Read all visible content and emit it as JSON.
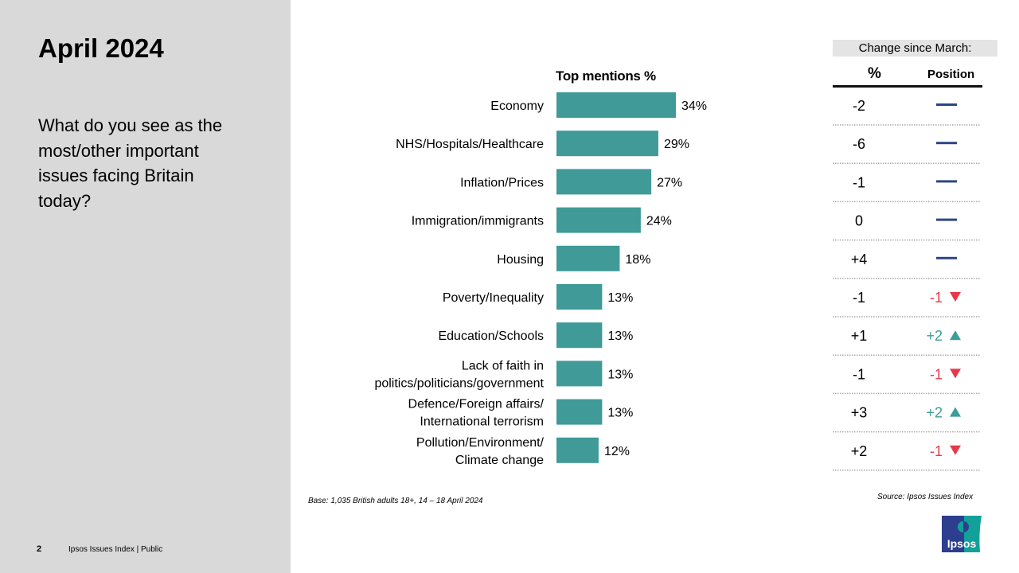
{
  "page": {
    "title": "April 2024",
    "question": "What do you see as the most/other important issues facing Britain today?",
    "page_number": "2",
    "footer": "Ipsos Issues Index | Public",
    "base": "Base: 1,035 British adults 18+, 14 – 18 April 2024",
    "source": "Source: Ipsos Issues Index",
    "logo": "Ipsos"
  },
  "change_table": {
    "header": "Change since March:",
    "pct_header": "%",
    "position_header": "Position",
    "rows": [
      {
        "pct": "-2",
        "position": "",
        "dir": "same"
      },
      {
        "pct": "-6",
        "position": "",
        "dir": "same"
      },
      {
        "pct": "-1",
        "position": "",
        "dir": "same"
      },
      {
        "pct": "0",
        "position": "",
        "dir": "same"
      },
      {
        "pct": "+4",
        "position": "",
        "dir": "same"
      },
      {
        "pct": "-1",
        "position": "-1",
        "dir": "down"
      },
      {
        "pct": "+1",
        "position": "+2",
        "dir": "up"
      },
      {
        "pct": "-1",
        "position": "-1",
        "dir": "down"
      },
      {
        "pct": "+3",
        "position": "+2",
        "dir": "up"
      },
      {
        "pct": "+2",
        "position": "-1",
        "dir": "down"
      }
    ]
  },
  "colors": {
    "bar": "#3f9a98",
    "same": "#2d4685",
    "down": "#e5394a",
    "up": "#3a9e9a"
  },
  "chart_data": {
    "type": "bar",
    "orientation": "horizontal",
    "title": "Top mentions %",
    "categories": [
      [
        "Economy"
      ],
      [
        "NHS/Hospitals/Healthcare"
      ],
      [
        "Inflation/Prices"
      ],
      [
        "Immigration/immigrants"
      ],
      [
        "Housing"
      ],
      [
        "Poverty/Inequality"
      ],
      [
        "Education/Schools"
      ],
      [
        "Lack of faith in",
        "politics/politicians/government"
      ],
      [
        "Defence/Foreign affairs/",
        "International terrorism"
      ],
      [
        "Pollution/Environment/",
        "Climate change"
      ]
    ],
    "values": [
      34,
      29,
      27,
      24,
      18,
      13,
      13,
      13,
      13,
      12
    ],
    "value_labels": [
      "34%",
      "29%",
      "27%",
      "24%",
      "18%",
      "13%",
      "13%",
      "13%",
      "13%",
      "12%"
    ],
    "grid": false
  }
}
